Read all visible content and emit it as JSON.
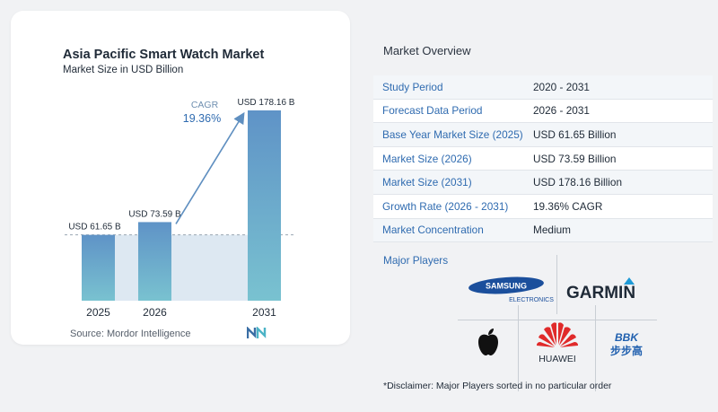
{
  "chart": {
    "title": "Asia Pacific Smart Watch Market",
    "subtitle": "Market Size in USD Billion",
    "source": "Source:  Mordor Intelligence",
    "cagr_label": "CAGR",
    "cagr_value": "19.36%"
  },
  "chart_data": {
    "type": "bar",
    "categories": [
      "2025",
      "2026",
      "2031"
    ],
    "values": [
      61.65,
      73.59,
      178.16
    ],
    "value_labels": [
      "USD 61.65 B",
      "USD 73.59 B",
      "USD 178.16 B"
    ],
    "title": "Asia Pacific Smart Watch Market",
    "subtitle": "Market Size in USD Billion",
    "xlabel": "",
    "ylabel": "",
    "ylim": [
      0,
      178.16
    ],
    "grid": false,
    "colors": {
      "bar_top": "#5f93c7",
      "bar_bottom": "#79c2d0",
      "shade": "#dde8f2",
      "arrow": "#5f8fc0"
    }
  },
  "overview": {
    "title": "Market Overview",
    "rows": [
      {
        "key": "Study Period",
        "value": "2020 - 2031"
      },
      {
        "key": "Forecast Data Period",
        "value": "2026 - 2031"
      },
      {
        "key": "Base Year Market Size (2025)",
        "value": "USD 61.65 Billion"
      },
      {
        "key": "Market Size (2026)",
        "value": "USD 73.59 Billion"
      },
      {
        "key": "Market Size (2031)",
        "value": "USD 178.16 Billion"
      },
      {
        "key": "Growth Rate (2026 - 2031)",
        "value": "19.36% CAGR"
      },
      {
        "key": "Market Concentration",
        "value": "Medium"
      }
    ]
  },
  "players": {
    "title": "Major Players",
    "logos": {
      "samsung": "SAMSUNG",
      "samsung_sub": "ELECTRONICS",
      "garmin": "GARMIN",
      "huawei": "HUAWEI",
      "bbk": "BBK",
      "bbk_cn": "步步高"
    }
  },
  "disclaimer": "*Disclaimer: Major Players sorted in no particular order"
}
